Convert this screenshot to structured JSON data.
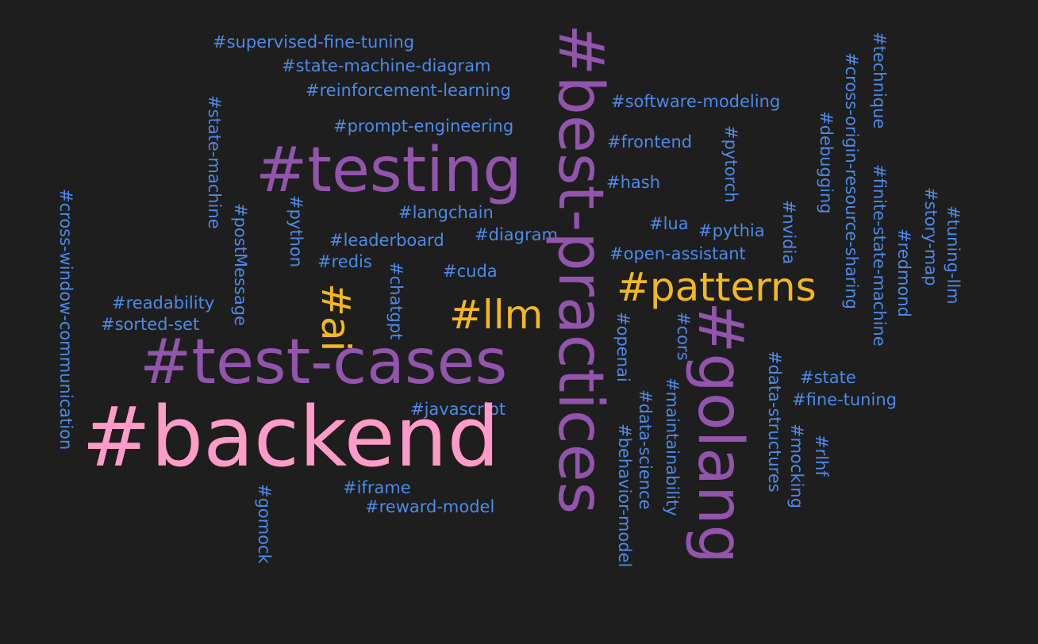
{
  "tags": [
    {
      "text": "#supervised-fine-tuning",
      "tier": 1
    },
    {
      "text": "#state-machine-diagram",
      "tier": 1
    },
    {
      "text": "#reinforcement-learning",
      "tier": 1
    },
    {
      "text": "#prompt-engineering",
      "tier": 1
    },
    {
      "text": "#software-modeling",
      "tier": 1
    },
    {
      "text": "#frontend",
      "tier": 1
    },
    {
      "text": "#hash",
      "tier": 1
    },
    {
      "text": "#langchain",
      "tier": 1
    },
    {
      "text": "#leaderboard",
      "tier": 1
    },
    {
      "text": "#diagram",
      "tier": 1
    },
    {
      "text": "#redis",
      "tier": 1
    },
    {
      "text": "#cuda",
      "tier": 1
    },
    {
      "text": "#lua",
      "tier": 1
    },
    {
      "text": "#pythia",
      "tier": 1
    },
    {
      "text": "#open-assistant",
      "tier": 1
    },
    {
      "text": "#readability",
      "tier": 1
    },
    {
      "text": "#sorted-set",
      "tier": 1
    },
    {
      "text": "#javascript",
      "tier": 1
    },
    {
      "text": "#iframe",
      "tier": 1
    },
    {
      "text": "#reward-model",
      "tier": 1
    },
    {
      "text": "#state",
      "tier": 1
    },
    {
      "text": "#fine-tuning",
      "tier": 1
    },
    {
      "text": "#state-machine",
      "tier": 1
    },
    {
      "text": "#cross-window-communication",
      "tier": 1
    },
    {
      "text": "#postMessage",
      "tier": 1
    },
    {
      "text": "#python",
      "tier": 1
    },
    {
      "text": "#chatgpt",
      "tier": 1
    },
    {
      "text": "#gomock",
      "tier": 1
    },
    {
      "text": "#pytorch",
      "tier": 1
    },
    {
      "text": "#nvidia",
      "tier": 1
    },
    {
      "text": "#debugging",
      "tier": 1
    },
    {
      "text": "#cross-origin-resource-sharing",
      "tier": 1
    },
    {
      "text": "#technique",
      "tier": 1
    },
    {
      "text": "#finite-state-machine",
      "tier": 1
    },
    {
      "text": "#story-map",
      "tier": 1
    },
    {
      "text": "#redmond",
      "tier": 1
    },
    {
      "text": "#tuning-llm",
      "tier": 1
    },
    {
      "text": "#openai",
      "tier": 1
    },
    {
      "text": "#cors",
      "tier": 1
    },
    {
      "text": "#behavior-model",
      "tier": 1
    },
    {
      "text": "#data-science",
      "tier": 1
    },
    {
      "text": "#maintainability",
      "tier": 1
    },
    {
      "text": "#data-structures",
      "tier": 1
    },
    {
      "text": "#mocking",
      "tier": 1
    },
    {
      "text": "#rlhf",
      "tier": 1
    },
    {
      "text": "#llm",
      "tier": 2
    },
    {
      "text": "#ai",
      "tier": 2
    },
    {
      "text": "#patterns",
      "tier": 3
    },
    {
      "text": "#testing",
      "tier": 4
    },
    {
      "text": "#test-cases",
      "tier": 4
    },
    {
      "text": "#best-practices",
      "tier": 4
    },
    {
      "text": "#golang",
      "tier": 4
    },
    {
      "text": "#backend",
      "tier": 5
    }
  ],
  "palette": {
    "background": "#1e1e1e",
    "tier1": "#4d8ae8",
    "tier2": "#f4b81d",
    "tier3": "#f4b81d",
    "tier4": "#9254ac",
    "tier5": "#ff9bc8"
  }
}
